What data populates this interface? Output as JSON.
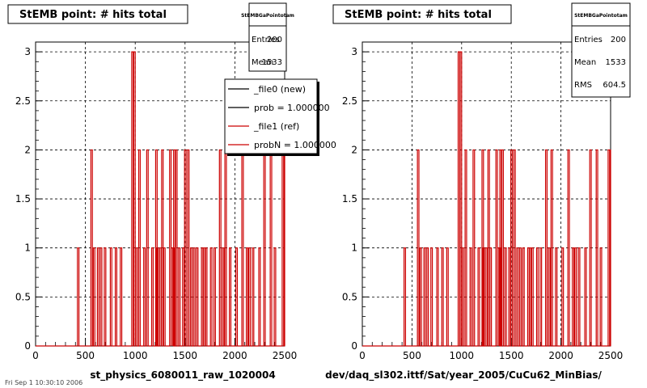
{
  "footer_note": "Fri Sep 1 10:30:10 2006",
  "chart_data": [
    {
      "type": "line",
      "title": "StEMB point: # hits total",
      "xlabel": "st_physics_6080011_raw_1020004",
      "ylabel": "",
      "xlim": [
        0,
        2500
      ],
      "ylim": [
        0,
        3.1
      ],
      "x_ticks": [
        0,
        500,
        1000,
        1500,
        2000,
        2500
      ],
      "y_ticks": [
        0,
        0.5,
        1,
        1.5,
        2,
        2.5,
        3
      ],
      "grid": true,
      "stats_box": {
        "title": "StEMBGaPointotam",
        "rows": [
          {
            "label": "Entries",
            "value": "200"
          },
          {
            "label": "Mean",
            "value": "1533"
          }
        ]
      },
      "legend": {
        "placement": "top-right",
        "entries": [
          {
            "label": "_file0 (new)",
            "color": "#000000"
          },
          {
            "label": "prob = 1.000000",
            "color": "#000000"
          },
          {
            "label": "_file1 (ref)",
            "color": "#cc0000"
          },
          {
            "label": "probN = 1.000000",
            "color": "#cc0000"
          }
        ]
      },
      "series": [
        {
          "color": "#cc0000",
          "bin_width": 15,
          "bins": [
            [
              420,
              1
            ],
            [
              555,
              2
            ],
            [
              580,
              1
            ],
            [
              620,
              1
            ],
            [
              650,
              1
            ],
            [
              690,
              1
            ],
            [
              750,
              1
            ],
            [
              800,
              1
            ],
            [
              850,
              1
            ],
            [
              965,
              3
            ],
            [
              985,
              3
            ],
            [
              1005,
              1
            ],
            [
              1035,
              2
            ],
            [
              1085,
              1
            ],
            [
              1115,
              2
            ],
            [
              1165,
              1
            ],
            [
              1205,
              2
            ],
            [
              1215,
              1
            ],
            [
              1245,
              1
            ],
            [
              1265,
              2
            ],
            [
              1285,
              1
            ],
            [
              1345,
              2
            ],
            [
              1360,
              1
            ],
            [
              1375,
              1
            ],
            [
              1385,
              2
            ],
            [
              1405,
              2
            ],
            [
              1435,
              1
            ],
            [
              1475,
              1
            ],
            [
              1495,
              2
            ],
            [
              1525,
              2
            ],
            [
              1555,
              1
            ],
            [
              1585,
              1
            ],
            [
              1615,
              1
            ],
            [
              1665,
              1
            ],
            [
              1685,
              1
            ],
            [
              1705,
              1
            ],
            [
              1755,
              1
            ],
            [
              1790,
              1
            ],
            [
              1845,
              2
            ],
            [
              1875,
              1
            ],
            [
              1900,
              2
            ],
            [
              1945,
              1
            ],
            [
              2010,
              1
            ],
            [
              2070,
              2
            ],
            [
              2115,
              1
            ],
            [
              2140,
              1
            ],
            [
              2175,
              1
            ],
            [
              2240,
              1
            ],
            [
              2290,
              2
            ],
            [
              2355,
              2
            ],
            [
              2395,
              1
            ],
            [
              2475,
              2
            ],
            [
              2495,
              2
            ]
          ]
        }
      ]
    },
    {
      "type": "line",
      "title": "StEMB point: # hits total",
      "xlabel": "dev/daq_sl302.ittf/Sat/year_2005/CuCu62_MinBias/",
      "ylabel": "",
      "xlim": [
        0,
        2500
      ],
      "ylim": [
        0,
        3.1
      ],
      "x_ticks": [
        0,
        500,
        1000,
        1500,
        2000,
        2500
      ],
      "y_ticks": [
        0,
        0.5,
        1,
        1.5,
        2,
        2.5,
        3
      ],
      "grid": true,
      "stats_box": {
        "title": "StEMBGaPointotam",
        "rows": [
          {
            "label": "Entries",
            "value": "200"
          },
          {
            "label": "Mean",
            "value": "1533"
          },
          {
            "label": "RMS",
            "value": "604.5"
          }
        ]
      },
      "legend": null,
      "series": [
        {
          "color": "#cc0000",
          "bin_width": 15,
          "bins": [
            [
              420,
              1
            ],
            [
              555,
              2
            ],
            [
              580,
              1
            ],
            [
              620,
              1
            ],
            [
              650,
              1
            ],
            [
              690,
              1
            ],
            [
              750,
              1
            ],
            [
              800,
              1
            ],
            [
              850,
              1
            ],
            [
              965,
              3
            ],
            [
              985,
              3
            ],
            [
              1005,
              1
            ],
            [
              1035,
              2
            ],
            [
              1085,
              1
            ],
            [
              1115,
              2
            ],
            [
              1165,
              1
            ],
            [
              1205,
              2
            ],
            [
              1215,
              1
            ],
            [
              1245,
              1
            ],
            [
              1265,
              2
            ],
            [
              1285,
              1
            ],
            [
              1345,
              2
            ],
            [
              1360,
              1
            ],
            [
              1375,
              1
            ],
            [
              1385,
              2
            ],
            [
              1405,
              2
            ],
            [
              1435,
              1
            ],
            [
              1475,
              1
            ],
            [
              1495,
              2
            ],
            [
              1525,
              2
            ],
            [
              1555,
              1
            ],
            [
              1585,
              1
            ],
            [
              1615,
              1
            ],
            [
              1665,
              1
            ],
            [
              1685,
              1
            ],
            [
              1705,
              1
            ],
            [
              1755,
              1
            ],
            [
              1790,
              1
            ],
            [
              1845,
              2
            ],
            [
              1875,
              1
            ],
            [
              1900,
              2
            ],
            [
              1945,
              1
            ],
            [
              2010,
              1
            ],
            [
              2070,
              2
            ],
            [
              2115,
              1
            ],
            [
              2140,
              1
            ],
            [
              2175,
              1
            ],
            [
              2240,
              1
            ],
            [
              2290,
              2
            ],
            [
              2355,
              2
            ],
            [
              2395,
              1
            ],
            [
              2475,
              2
            ],
            [
              2495,
              2
            ]
          ]
        }
      ]
    }
  ]
}
